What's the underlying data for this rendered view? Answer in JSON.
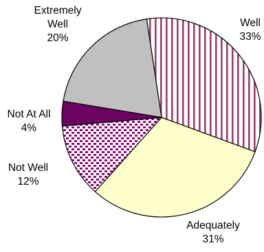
{
  "chart_data": {
    "type": "pie",
    "title": "",
    "slices": [
      {
        "label": "Well",
        "value": 33,
        "value_label": "33%",
        "color": "#9c3d6e",
        "fill": "stripes"
      },
      {
        "label": "Adequately",
        "value": 31,
        "value_label": "31%",
        "color": "#ffffcc",
        "fill": "solid"
      },
      {
        "label": "Not Well",
        "value": 12,
        "value_label": "12%",
        "color": "#8b0a78",
        "fill": "dots"
      },
      {
        "label": "Not At All",
        "value": 4,
        "value_label": "4%",
        "color": "#6a0460",
        "fill": "solid"
      },
      {
        "label": "Extremely Well",
        "value": 20,
        "value_label": "20%",
        "color": "#c0c0c0",
        "fill": "solid"
      }
    ],
    "start_label": "Well",
    "direction": "clockwise",
    "legend": "none",
    "label_style": "outside category name with percent below"
  }
}
